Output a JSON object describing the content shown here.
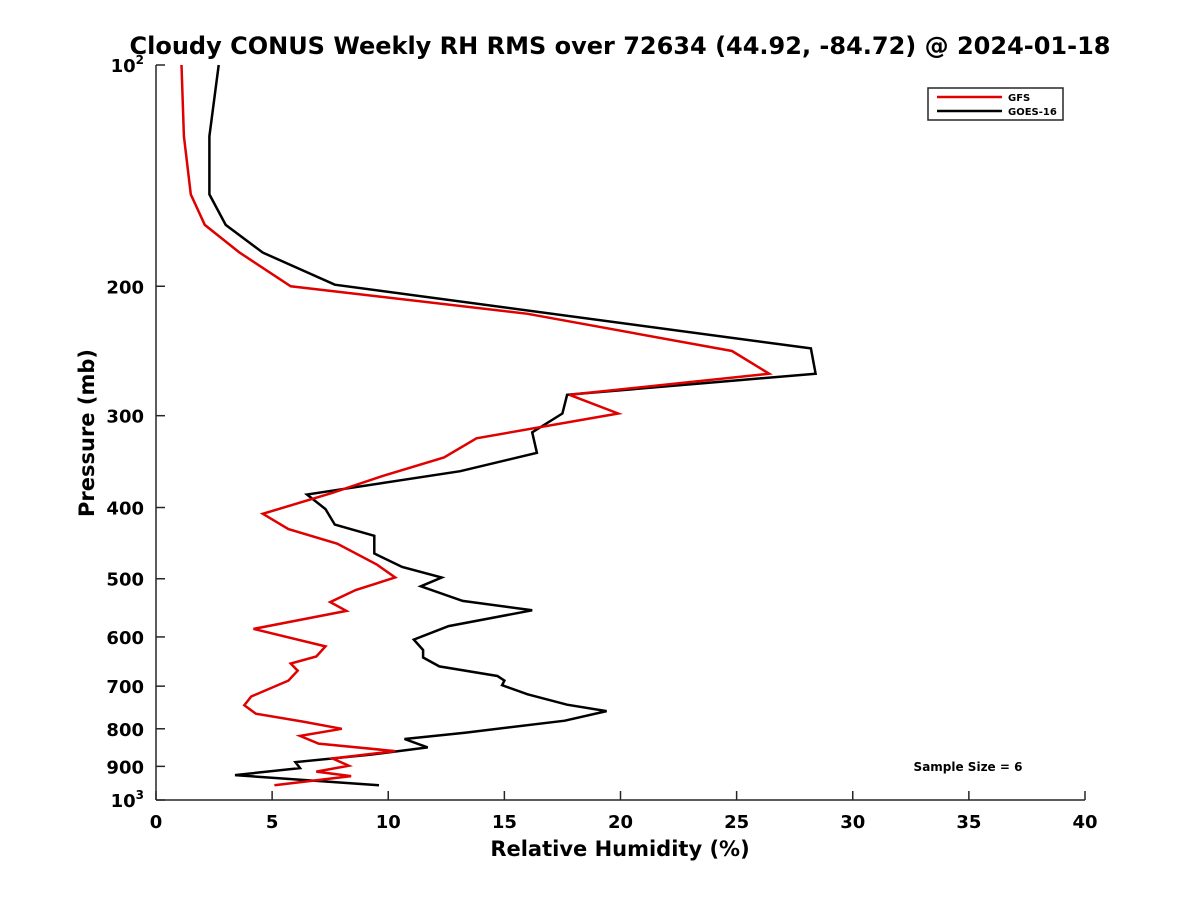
{
  "chart_data": {
    "type": "line",
    "title": "Cloudy CONUS Weekly RH RMS over 72634 (44.92, -84.72) @ 2024-01-18",
    "xlabel": "Relative Humidity (%)",
    "ylabel": "Pressure (mb)",
    "xlim": [
      0,
      40
    ],
    "ylim": [
      100,
      1000
    ],
    "yscale": "log",
    "y_reversed": true,
    "grid": false,
    "legend_position": "top-right",
    "x_ticks": [
      "0",
      "5",
      "10",
      "15",
      "20",
      "25",
      "30",
      "35",
      "40"
    ],
    "y_ticks": [
      {
        "value": 100,
        "base": "10",
        "exp": "2"
      },
      {
        "value": 200,
        "label": "200"
      },
      {
        "value": 300,
        "label": "300"
      },
      {
        "value": 400,
        "label": "400"
      },
      {
        "value": 500,
        "label": "500"
      },
      {
        "value": 600,
        "label": "600"
      },
      {
        "value": 700,
        "label": "700"
      },
      {
        "value": 800,
        "label": "800"
      },
      {
        "value": 900,
        "label": "900"
      },
      {
        "value": 1000,
        "base": "10",
        "exp": "3"
      }
    ],
    "annotation": "Sample Size = 6",
    "series": [
      {
        "name": "GFS",
        "color": "#e00000",
        "points": [
          [
            1.1,
            100
          ],
          [
            1.2,
            125
          ],
          [
            1.5,
            150
          ],
          [
            2.1,
            165
          ],
          [
            3.6,
            180
          ],
          [
            5.8,
            200
          ],
          [
            16,
            218
          ],
          [
            24.8,
            245
          ],
          [
            26.4,
            263
          ],
          [
            17.8,
            281
          ],
          [
            19.9,
            298
          ],
          [
            13.8,
            322
          ],
          [
            12.4,
            342
          ],
          [
            9.8,
            362
          ],
          [
            7.6,
            382
          ],
          [
            4.6,
            408
          ],
          [
            5.7,
            428
          ],
          [
            7.8,
            448
          ],
          [
            9.5,
            478
          ],
          [
            10.3,
            498
          ],
          [
            8.6,
            518
          ],
          [
            7.5,
            538
          ],
          [
            8.2,
            553
          ],
          [
            4.2,
            585
          ],
          [
            7.3,
            618
          ],
          [
            6.9,
            638
          ],
          [
            5.8,
            652
          ],
          [
            6.1,
            667
          ],
          [
            5.7,
            688
          ],
          [
            4.1,
            723
          ],
          [
            3.8,
            743
          ],
          [
            4.3,
            763
          ],
          [
            6.3,
            782
          ],
          [
            8.0,
            800
          ],
          [
            6.2,
            818
          ],
          [
            7.0,
            838
          ],
          [
            10.3,
            858
          ],
          [
            7.6,
            878
          ],
          [
            8.3,
            898
          ],
          [
            6.9,
            915
          ],
          [
            8.4,
            928
          ],
          [
            5.1,
            955
          ]
        ]
      },
      {
        "name": "GOES-16",
        "color": "#000000",
        "points": [
          [
            2.7,
            100
          ],
          [
            2.3,
            125
          ],
          [
            2.3,
            150
          ],
          [
            3.0,
            165
          ],
          [
            4.6,
            180
          ],
          [
            7.7,
            199
          ],
          [
            28.2,
            243
          ],
          [
            28.4,
            263
          ],
          [
            17.7,
            281
          ],
          [
            17.5,
            298
          ],
          [
            16.2,
            316
          ],
          [
            16.4,
            337
          ],
          [
            13.1,
            357
          ],
          [
            6.5,
            384
          ],
          [
            7.3,
            402
          ],
          [
            7.7,
            422
          ],
          [
            9.4,
            437
          ],
          [
            9.4,
            462
          ],
          [
            10.6,
            482
          ],
          [
            12.3,
            498
          ],
          [
            11.4,
            512
          ],
          [
            13.2,
            536
          ],
          [
            16.2,
            552
          ],
          [
            12.6,
            580
          ],
          [
            11.1,
            605
          ],
          [
            11.5,
            625
          ],
          [
            11.5,
            640
          ],
          [
            12.2,
            658
          ],
          [
            14.7,
            678
          ],
          [
            15.0,
            688
          ],
          [
            14.9,
            698
          ],
          [
            16.0,
            718
          ],
          [
            17.7,
            742
          ],
          [
            19.4,
            757
          ],
          [
            17.6,
            780
          ],
          [
            13.3,
            810
          ],
          [
            10.7,
            826
          ],
          [
            11.7,
            848
          ],
          [
            9.2,
            868
          ],
          [
            6.0,
            888
          ],
          [
            6.2,
            905
          ],
          [
            3.4,
            925
          ],
          [
            9.6,
            955
          ]
        ]
      }
    ]
  }
}
